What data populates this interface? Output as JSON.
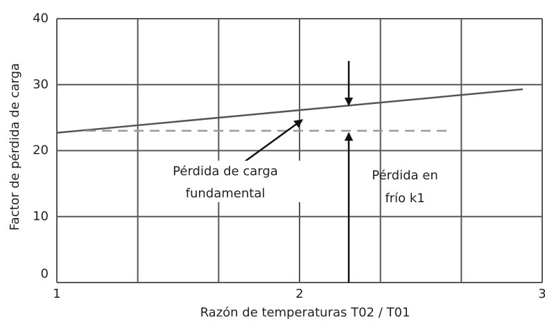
{
  "chart_data": {
    "type": "line",
    "xlabel": "Razón de temperaturas T02 / T01",
    "ylabel": "Factor de pérdida de carga",
    "xlim": [
      1,
      3
    ],
    "ylim": [
      0,
      40
    ],
    "xticks": [
      1,
      2,
      3
    ],
    "yticks": [
      0,
      10,
      20,
      30,
      40
    ],
    "grid": true,
    "xgrid_divisions": 3,
    "series": [
      {
        "color": "#555555",
        "dash": false,
        "x": [
          1,
          2.92
        ],
        "values": [
          22.7,
          29.3
        ]
      },
      {
        "color": "#999999",
        "dash": true,
        "x": [
          1.12,
          2.63
        ],
        "values": [
          23,
          23
        ]
      }
    ],
    "annotations": [
      "Pérdida de carga",
      "fundamental",
      "Pérdida en",
      "frío k1"
    ]
  }
}
